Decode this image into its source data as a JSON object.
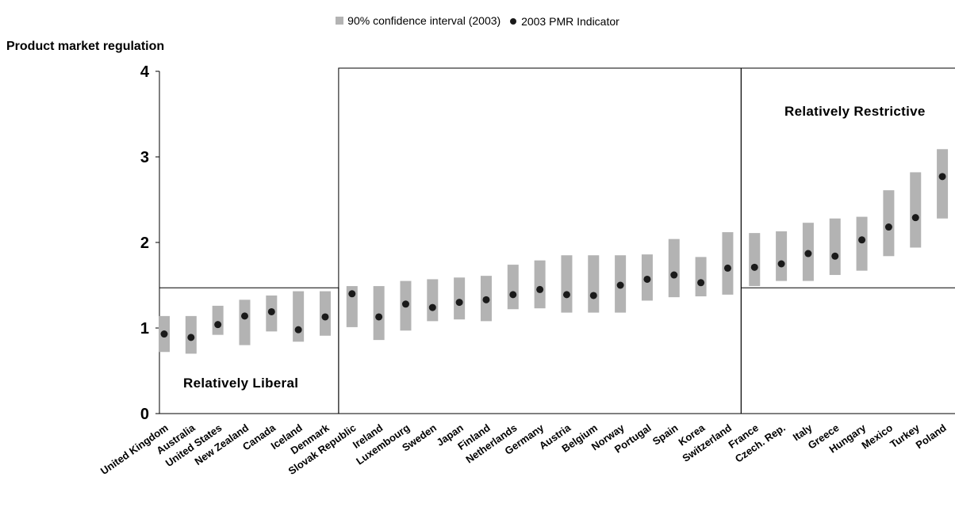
{
  "chart_data": {
    "type": "scatter",
    "ylabel": "Product market regulation",
    "ylim": [
      0,
      4
    ],
    "yticks": [
      0,
      1,
      2,
      3,
      4
    ],
    "legend": [
      {
        "name": "90% confidence interval (2003)",
        "marker": "bar",
        "color": "#b3b3b3"
      },
      {
        "name": "2003 PMR Indicator",
        "marker": "dot",
        "color": "#1a1a1a"
      }
    ],
    "legend_position": "top-center",
    "categories": [
      "United Kingdom",
      "Australia",
      "United States",
      "New Zealand",
      "Canada",
      "Iceland",
      "Denmark",
      "Slovak Republic",
      "Ireland",
      "Luxembourg",
      "Sweden",
      "Japan",
      "Finland",
      "Netherlands",
      "Germany",
      "Austria",
      "Belgium",
      "Norway",
      "Portugal",
      "Spain",
      "Korea",
      "Switzerland",
      "France",
      "Czech. Rep.",
      "Italy",
      "Greece",
      "Hungary",
      "Mexico",
      "Turkey",
      "Poland"
    ],
    "series": [
      {
        "name": "2003 PMR Indicator",
        "values": [
          0.93,
          0.89,
          1.04,
          1.14,
          1.19,
          0.98,
          1.13,
          1.4,
          1.13,
          1.28,
          1.24,
          1.3,
          1.33,
          1.39,
          1.45,
          1.39,
          1.38,
          1.5,
          1.57,
          1.62,
          1.53,
          1.7,
          1.71,
          1.75,
          1.87,
          1.84,
          2.03,
          2.18,
          2.29,
          2.77
        ]
      },
      {
        "name": "90% confidence interval (2003)",
        "low": [
          0.72,
          0.7,
          0.92,
          0.8,
          0.96,
          0.84,
          0.91,
          1.01,
          0.86,
          0.97,
          1.08,
          1.1,
          1.08,
          1.22,
          1.23,
          1.18,
          1.18,
          1.18,
          1.32,
          1.36,
          1.37,
          1.39,
          1.49,
          1.55,
          1.55,
          1.62,
          1.67,
          1.84,
          1.94,
          2.28
        ],
        "high": [
          1.14,
          1.14,
          1.26,
          1.33,
          1.38,
          1.43,
          1.43,
          1.49,
          1.49,
          1.55,
          1.57,
          1.59,
          1.61,
          1.74,
          1.79,
          1.85,
          1.85,
          1.85,
          1.86,
          2.04,
          1.83,
          2.12,
          2.11,
          2.13,
          2.23,
          2.28,
          2.3,
          2.61,
          2.82,
          3.09
        ]
      }
    ],
    "threshold_y": 1.47,
    "regions": [
      {
        "label": "Relatively Liberal",
        "from": "United Kingdom",
        "to": "Denmark"
      },
      {
        "label": "",
        "from": "Slovak Republic",
        "to": "Switzerland"
      },
      {
        "label": "Relatively Restrictive",
        "from": "France",
        "to": "Poland"
      }
    ],
    "grid": false
  }
}
